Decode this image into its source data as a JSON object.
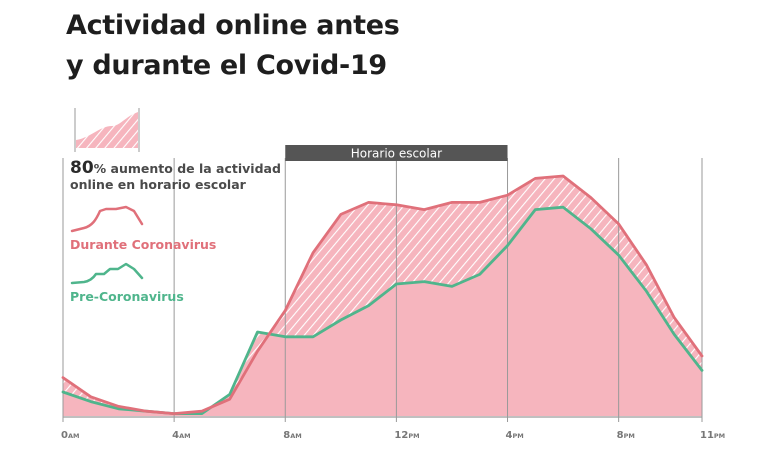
{
  "title_line1": "Actividad online antes",
  "title_line2": "y durante el Covid-19",
  "legend": {
    "pct_value": "80",
    "pct_symbol": "%",
    "pct_text": " aumento de la actividad online en horario escolar",
    "during_label": "Durante Coronavirus",
    "pre_label": "Pre-Coronavirus"
  },
  "colors": {
    "during_line": "#e0707a",
    "during_fill": "#f6b5be",
    "pre_line": "#4fb58c",
    "band": "#555555",
    "grid": "#999999"
  },
  "chart_data": {
    "type": "line",
    "x_unit": "hour",
    "xlim": [
      0,
      23
    ],
    "ylim": [
      0,
      100
    ],
    "x_ticks": [
      {
        "x": 0,
        "num": "0",
        "suffix": "AM"
      },
      {
        "x": 4,
        "num": "4",
        "suffix": "AM"
      },
      {
        "x": 8,
        "num": "8",
        "suffix": "AM"
      },
      {
        "x": 12,
        "num": "12",
        "suffix": "PM"
      },
      {
        "x": 16,
        "num": "4",
        "suffix": "PM"
      },
      {
        "x": 20,
        "num": "8",
        "suffix": "PM"
      },
      {
        "x": 23,
        "num": "11",
        "suffix": "PM"
      }
    ],
    "band": {
      "label": "Horario escolar",
      "from": 8,
      "to": 16
    },
    "series": [
      {
        "name": "Durante Coronavirus",
        "x": [
          0,
          1,
          2,
          3,
          4,
          5,
          6,
          7,
          8,
          9,
          10,
          11,
          12,
          13,
          14,
          15,
          16,
          17,
          18,
          19,
          20,
          21,
          22,
          23
        ],
        "y": [
          16,
          8,
          4,
          2,
          1,
          2,
          7,
          27,
          44,
          68,
          84,
          89,
          88,
          86,
          89,
          89,
          92,
          99,
          100,
          91,
          80,
          63,
          41,
          25
        ]
      },
      {
        "name": "Pre-Coronavirus",
        "x": [
          0,
          1,
          2,
          3,
          4,
          5,
          6,
          7,
          8,
          9,
          10,
          11,
          12,
          13,
          14,
          15,
          16,
          17,
          18,
          19,
          20,
          21,
          22,
          23
        ],
        "y": [
          10,
          6,
          3,
          2,
          1,
          1,
          9,
          35,
          33,
          33,
          40,
          46,
          55,
          56,
          54,
          59,
          71,
          86,
          87,
          78,
          67,
          52,
          34,
          19
        ]
      }
    ]
  }
}
